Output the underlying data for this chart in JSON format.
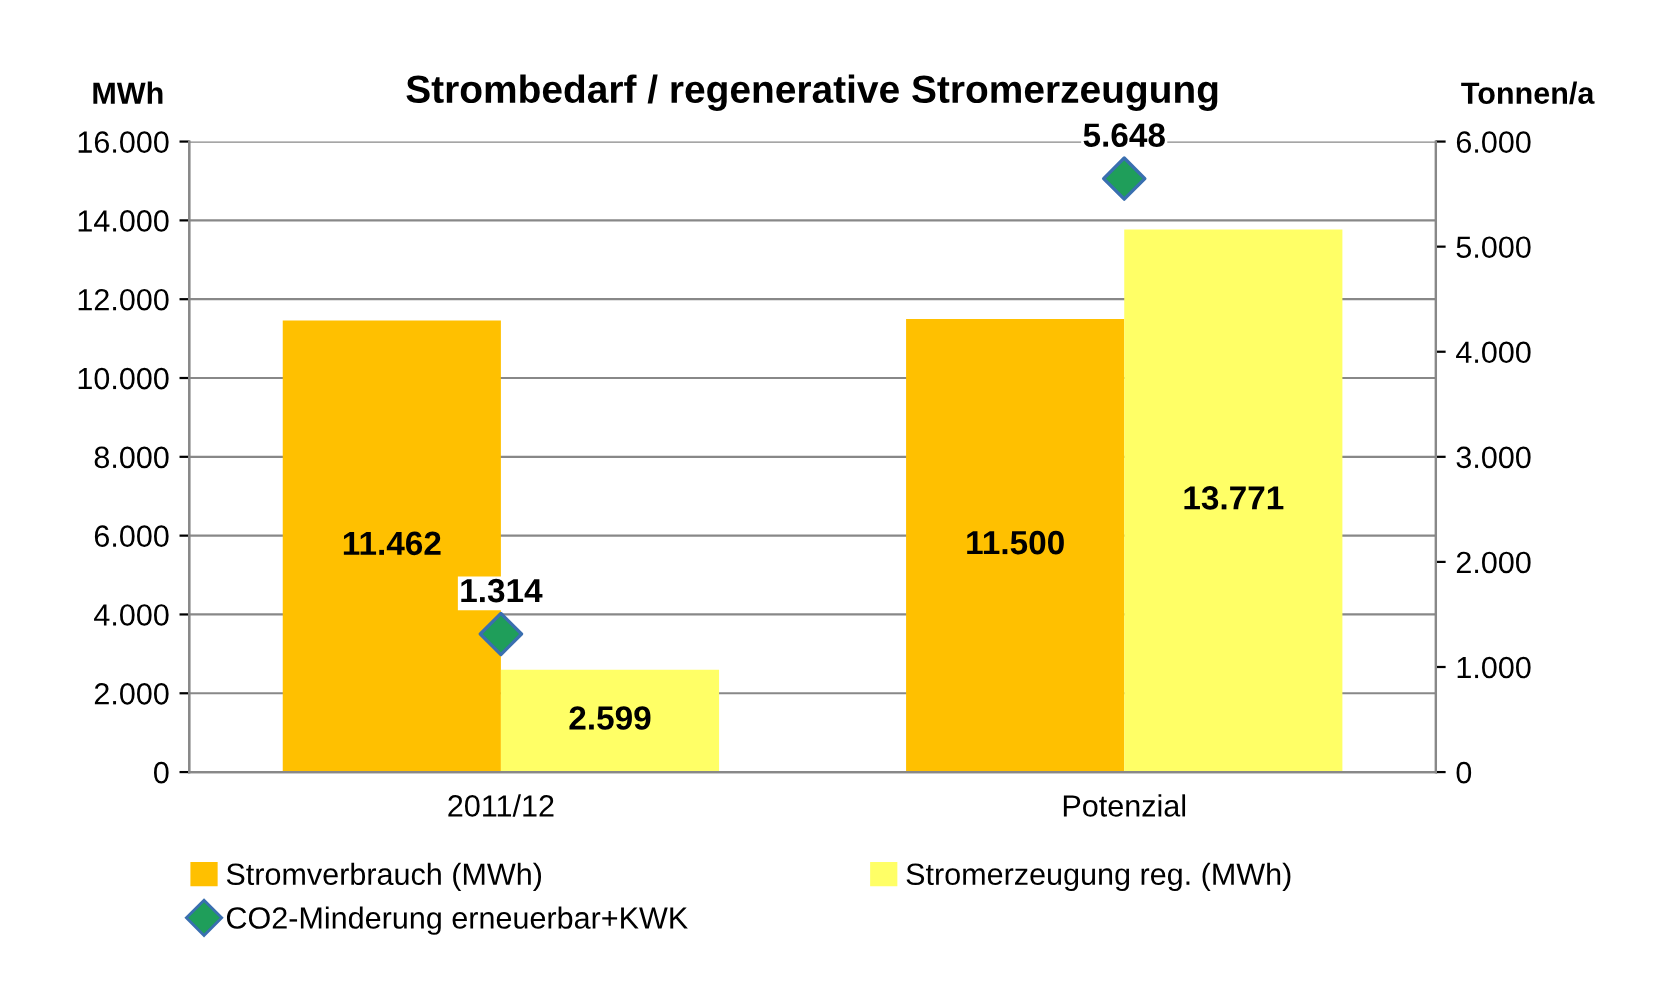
{
  "chart_data": {
    "type": "bar",
    "title": "Strombedarf / regenerative Stromerzeugung",
    "ylabel": "MWh",
    "y2label": "Tonnen/a",
    "categories": [
      "2011/12",
      "Potenzial"
    ],
    "series": [
      {
        "name": "Stromverbrauch (MWh)",
        "color": "#ffc000",
        "values": [
          11462,
          11500
        ],
        "value_labels": [
          "11.462",
          "11.500"
        ]
      },
      {
        "name": "Stromerzeugung reg. (MWh)",
        "color": "#ffff66",
        "values": [
          2599,
          13771
        ],
        "value_labels": [
          "2.599",
          "13.771"
        ]
      },
      {
        "name": "CO2-Minderung erneuerbar+KWK",
        "type": "scatter",
        "axis": "y2",
        "marker": "diamond",
        "color": "#1f9e5a",
        "x": [
          "2011/12",
          "Potenzial"
        ],
        "values": [
          1314,
          5648
        ],
        "value_labels": [
          "1.314",
          "5.648"
        ]
      }
    ],
    "ylim": [
      0,
      16000
    ],
    "yticks": [
      {
        "value": 0,
        "label": "0"
      },
      {
        "value": 2000,
        "label": "2.000"
      },
      {
        "value": 4000,
        "label": "4.000"
      },
      {
        "value": 6000,
        "label": "6.000"
      },
      {
        "value": 8000,
        "label": "8.000"
      },
      {
        "value": 10000,
        "label": "10.000"
      },
      {
        "value": 12000,
        "label": "12.000"
      },
      {
        "value": 14000,
        "label": "14.000"
      },
      {
        "value": 16000,
        "label": "16.000"
      }
    ],
    "y2lim": [
      0,
      6000
    ],
    "y2ticks": [
      {
        "value": 0,
        "label": "0"
      },
      {
        "value": 1000,
        "label": "1.000"
      },
      {
        "value": 2000,
        "label": "2.000"
      },
      {
        "value": 3000,
        "label": "3.000"
      },
      {
        "value": 4000,
        "label": "4.000"
      },
      {
        "value": 5000,
        "label": "5.000"
      },
      {
        "value": 6000,
        "label": "6.000"
      }
    ],
    "grid": "y",
    "legend": "bottom"
  }
}
